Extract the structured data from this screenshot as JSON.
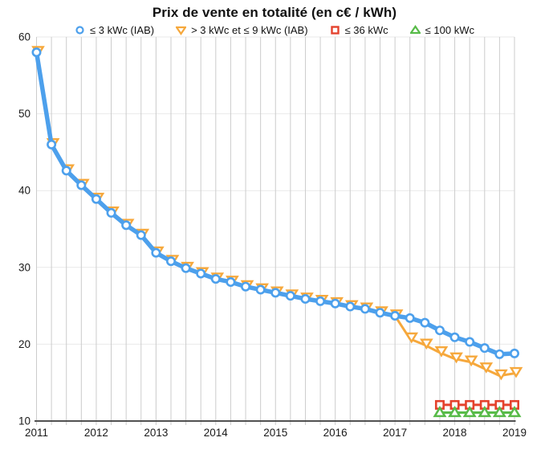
{
  "chart_data": {
    "type": "line",
    "title": "Prix de vente en totalité (en c€ / kWh)",
    "xlabel": "",
    "ylabel": "",
    "x_axis": {
      "tick_labels": [
        "2011",
        "2012",
        "2013",
        "2014",
        "2015",
        "2016",
        "2017",
        "2018",
        "2019"
      ],
      "points_per_year": 4,
      "total_points": 33,
      "note": "quarterly points from 2011-Q1 to 2019-Q1, vertical gridline at every quarter"
    },
    "y_axis": {
      "min": 10,
      "max": 60,
      "tick_labels": [
        "10",
        "20",
        "30",
        "40",
        "50",
        "60"
      ]
    },
    "grid": {
      "vertical": true,
      "horizontal": true,
      "vertical_color": "#cccccc",
      "horizontal_color": "#e9e9e9",
      "axis_color": "#3a3a3a"
    },
    "legend_position": "top",
    "series": [
      {
        "name": "≤ 3 kWc (IAB)",
        "color": "#4da0ec",
        "marker": "circle",
        "line_width": 5.5,
        "start_index": 0,
        "values": [
          58.0,
          46.0,
          42.6,
          40.7,
          38.9,
          37.1,
          35.5,
          34.2,
          31.9,
          30.8,
          29.9,
          29.2,
          28.5,
          28.1,
          27.5,
          27.1,
          26.7,
          26.3,
          25.9,
          25.6,
          25.3,
          24.9,
          24.6,
          24.1,
          23.7,
          23.4,
          22.8,
          21.8,
          20.9,
          20.3,
          19.5,
          18.7,
          18.8
        ]
      },
      {
        "name": "> 3 kWc et ≤ 9 kWc (IAB)",
        "color": "#f6a83c",
        "marker": "triangle-down",
        "line_width": 3,
        "start_index": 0,
        "values": [
          58.0,
          46.0,
          42.6,
          40.7,
          38.9,
          37.1,
          35.5,
          34.2,
          31.9,
          30.8,
          29.9,
          29.2,
          28.5,
          28.1,
          27.5,
          27.1,
          26.7,
          26.3,
          25.9,
          25.6,
          25.3,
          24.9,
          24.6,
          24.1,
          23.7,
          20.7,
          19.9,
          18.9,
          18.1,
          17.7,
          16.8,
          15.9,
          16.2
        ]
      },
      {
        "name": "≤ 36 kWc",
        "color": "#e4422d",
        "marker": "square",
        "line_width": 3,
        "start_index": 27,
        "values": [
          12.1,
          12.1,
          12.1,
          12.1,
          12.1,
          12.1
        ]
      },
      {
        "name": "≤ 100 kWc",
        "color": "#58bb49",
        "marker": "triangle-up",
        "line_width": 3,
        "start_index": 27,
        "values": [
          11.1,
          11.1,
          11.1,
          11.1,
          11.1,
          11.1
        ]
      }
    ]
  }
}
